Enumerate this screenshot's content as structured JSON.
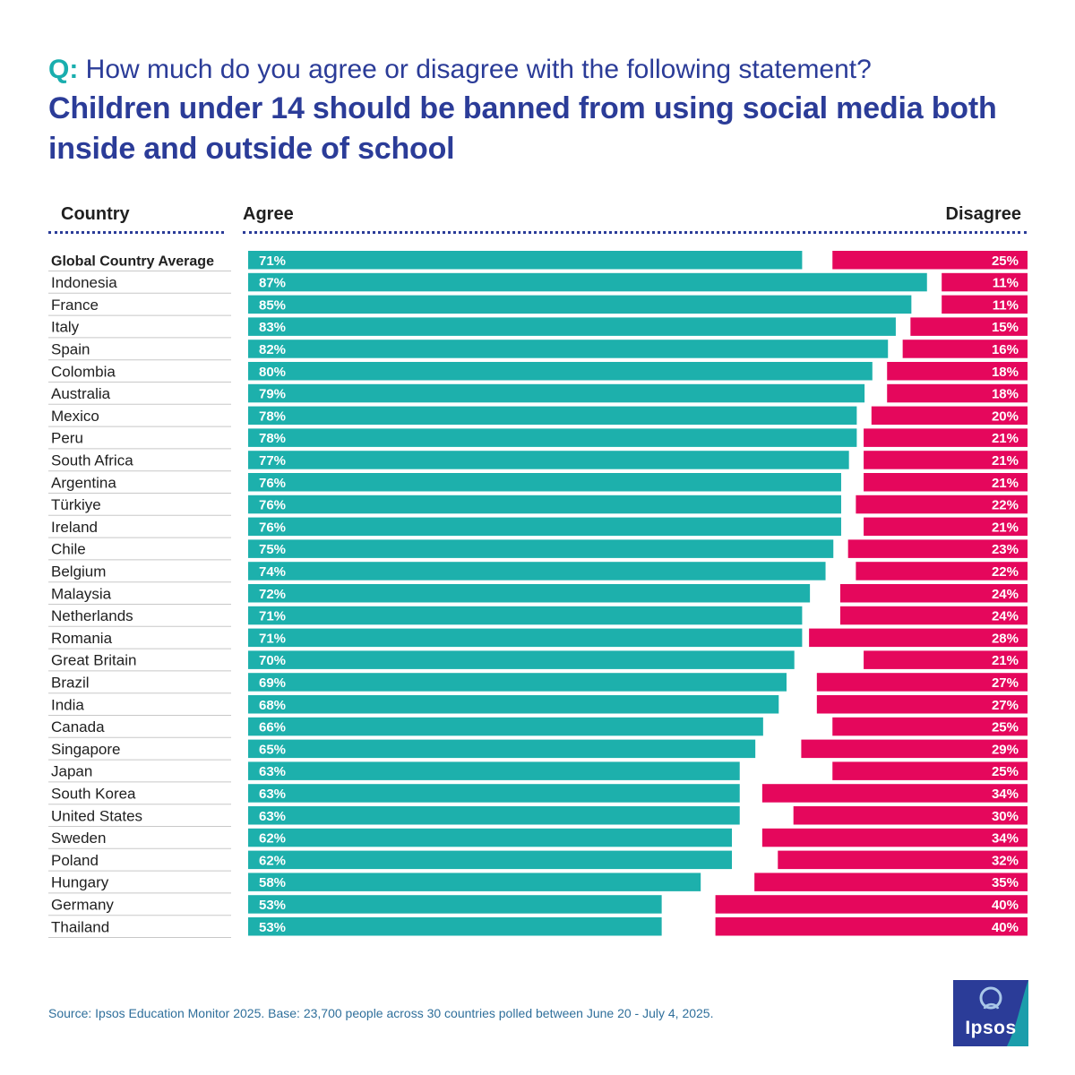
{
  "title": {
    "prefix": "Q:",
    "question": "How much do you agree or disagree with the following statement?",
    "statement": "Children under 14 should be banned from using social media both inside and outside of school"
  },
  "headers": {
    "country": "Country",
    "agree": "Agree",
    "disagree": "Disagree"
  },
  "source": "Source: Ipsos Education Monitor 2025. Base: 23,700 people across 30 countries polled between June 20 - July 4, 2025.",
  "logo": {
    "text": "Ipsos"
  },
  "colors": {
    "agree": "#1db0ac",
    "disagree": "#e5075c",
    "title": "#2b3c98",
    "accent": "#19aeae",
    "logo_bg": "#2b3c98"
  },
  "chart_data": {
    "type": "bar",
    "orientation": "horizontal",
    "stacking": "diverging",
    "value_unit": "%",
    "xlim": [
      0,
      100
    ],
    "categories": [
      "Global Country Average",
      "Indonesia",
      "France",
      "Italy",
      "Spain",
      "Colombia",
      "Australia",
      "Mexico",
      "Peru",
      "South Africa",
      "Argentina",
      "Türkiye",
      "Ireland",
      "Chile",
      "Belgium",
      "Malaysia",
      "Netherlands",
      "Romania",
      "Great Britain",
      "Brazil",
      "India",
      "Canada",
      "Singapore",
      "Japan",
      "South Korea",
      "United States",
      "Sweden",
      "Poland",
      "Hungary",
      "Germany",
      "Thailand"
    ],
    "series": [
      {
        "name": "Agree",
        "values": [
          71,
          87,
          85,
          83,
          82,
          80,
          79,
          78,
          78,
          77,
          76,
          76,
          76,
          75,
          74,
          72,
          71,
          71,
          70,
          69,
          68,
          66,
          65,
          63,
          63,
          63,
          62,
          62,
          58,
          53,
          53
        ]
      },
      {
        "name": "Disagree",
        "values": [
          25,
          11,
          11,
          15,
          16,
          18,
          18,
          20,
          21,
          21,
          21,
          22,
          21,
          23,
          22,
          24,
          24,
          28,
          21,
          27,
          27,
          25,
          29,
          25,
          34,
          30,
          34,
          32,
          35,
          40,
          40
        ]
      }
    ],
    "highlight_category": "Global Country Average"
  }
}
